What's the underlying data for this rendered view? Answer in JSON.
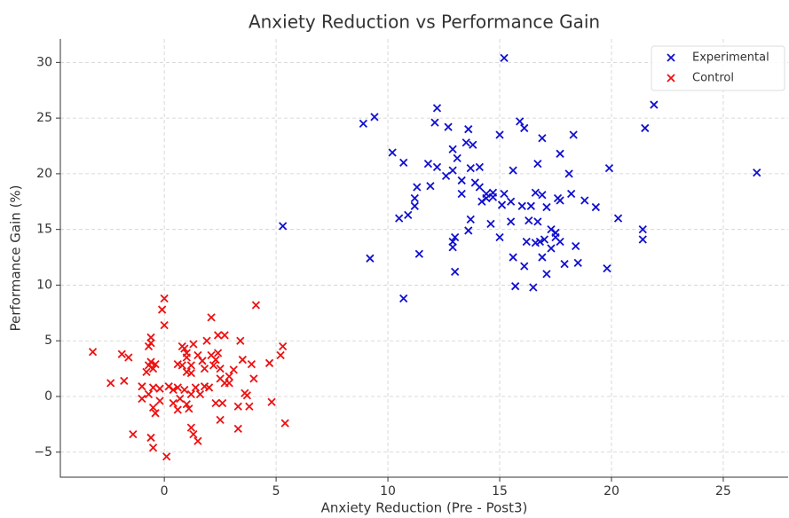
{
  "chart_data": {
    "type": "scatter",
    "title": "Anxiety Reduction vs Performance Gain",
    "x_label": "Anxiety Reduction (Pre - Post3)",
    "y_label": "Performance Gain (%)",
    "xlim": [
      -4.65,
      27.9
    ],
    "ylim": [
      -7.25,
      32.1
    ],
    "xticks": [
      0,
      5,
      10,
      15,
      20,
      25
    ],
    "yticks": [
      {
        "value": -5,
        "label": "−5"
      },
      0,
      5,
      10,
      15,
      20,
      25,
      30
    ],
    "grid": true,
    "legend": "upper right",
    "series": [
      {
        "name": "Experimental",
        "color": "#1010d0",
        "x": [
          15.2,
          8.9,
          9.4,
          12.2,
          12.1,
          12.7,
          13.6,
          15.9,
          16.1,
          15.0,
          18.3,
          16.9,
          21.5,
          21.9,
          26.5,
          10.2,
          10.7,
          12.9,
          13.5,
          13.8,
          13.1,
          11.8,
          12.2,
          12.9,
          13.7,
          14.1,
          15.6,
          16.7,
          17.7,
          19.9,
          18.1,
          12.6,
          13.3,
          13.9,
          14.1,
          11.9,
          11.3,
          14.4,
          14.7,
          14.4,
          14.7,
          15.2,
          15.1,
          15.5,
          16.6,
          16.9,
          13.3,
          11.2,
          11.2,
          14.2,
          16.0,
          16.4,
          17.1,
          17.6,
          17.7,
          18.2,
          18.8,
          19.3,
          10.5,
          10.9,
          13.7,
          14.6,
          15.5,
          16.3,
          16.7,
          20.3,
          21.4,
          13.6,
          13.0,
          12.9,
          12.9,
          15.0,
          16.2,
          16.6,
          16.8,
          17.0,
          17.3,
          17.5,
          17.5,
          17.7,
          17.3,
          18.4,
          21.4,
          11.4,
          9.2,
          15.6,
          16.1,
          16.9,
          17.9,
          18.5,
          19.8,
          13.0,
          17.1,
          15.7,
          16.5,
          10.7,
          5.3
        ],
        "values": [
          30.4,
          24.5,
          25.1,
          25.9,
          24.6,
          24.2,
          24.0,
          24.7,
          24.1,
          23.5,
          23.5,
          23.2,
          24.1,
          26.2,
          20.1,
          21.9,
          21.0,
          22.2,
          22.8,
          22.6,
          21.4,
          20.9,
          20.6,
          20.3,
          20.5,
          20.6,
          20.3,
          20.9,
          21.8,
          20.5,
          20.0,
          19.8,
          19.4,
          19.2,
          18.8,
          18.9,
          18.8,
          18.2,
          18.3,
          17.8,
          17.9,
          18.2,
          17.2,
          17.5,
          18.3,
          18.1,
          18.2,
          17.8,
          17.1,
          17.5,
          17.1,
          17.1,
          17.0,
          17.8,
          17.6,
          18.2,
          17.6,
          17.0,
          16.0,
          16.3,
          15.9,
          15.5,
          15.7,
          15.8,
          15.7,
          16.0,
          15.0,
          14.9,
          14.3,
          13.9,
          13.4,
          14.3,
          13.9,
          13.8,
          13.9,
          14.1,
          15.0,
          14.7,
          14.3,
          13.9,
          13.3,
          13.5,
          14.1,
          12.8,
          12.4,
          12.5,
          11.7,
          12.5,
          11.9,
          12.0,
          11.5,
          11.2,
          11.0,
          9.9,
          9.8,
          8.8,
          15.3
        ]
      },
      {
        "name": "Control",
        "color": "#ee1010",
        "x": [
          -3.2,
          -2.4,
          -1.8,
          -1.9,
          -1.6,
          -1.4,
          -0.6,
          0,
          -0.1,
          0,
          -0.6,
          -0.6,
          -0.7,
          -0.6,
          -0.4,
          -0.7,
          -0.8,
          -0.5,
          -1.0,
          -1.0,
          -0.7,
          -0.5,
          -0.2,
          -0.4,
          -0.5,
          -0.5,
          0.1,
          -0.2,
          0.2,
          0.4,
          0.6,
          0.9,
          0.7,
          0.4,
          1.0,
          0.6,
          0.6,
          0.8,
          1.0,
          1.2,
          0.8,
          0.9,
          1.0,
          1.0,
          1.3,
          1.2,
          1.4,
          1.2,
          1.6,
          1.1,
          1.5,
          1.7,
          1.8,
          1.9,
          2.1,
          2.1,
          2.2,
          2.3,
          2.4,
          2.5,
          2.7,
          2.4,
          1.8,
          2.0,
          2.5,
          2.7,
          1.2,
          1.3,
          1.5,
          2.3,
          2.6,
          2.5,
          3.1,
          3.4,
          3.5,
          3.6,
          3.7,
          3.3,
          3.3,
          2.9,
          2.9,
          3.9,
          4.0,
          4.1,
          3.8,
          4.7,
          4.8,
          5.3,
          5.2,
          5.4
        ],
        "values": [
          4.0,
          1.2,
          1.4,
          3.8,
          3.5,
          -3.4,
          -3.7,
          8.8,
          7.8,
          6.4,
          5.3,
          4.8,
          4.5,
          3.1,
          2.9,
          2.8,
          2.2,
          2.5,
          0.9,
          -0.2,
          0.2,
          0.8,
          0.7,
          -1.5,
          -1.0,
          -4.6,
          -5.4,
          -0.4,
          0.9,
          0.6,
          0.8,
          0.6,
          -0.2,
          -0.6,
          -0.7,
          -1.2,
          2.9,
          2.8,
          2.2,
          2.8,
          4.5,
          4.3,
          3.9,
          3.5,
          4.7,
          2.1,
          0.8,
          0.2,
          0.2,
          -1.1,
          3.7,
          3.2,
          2.5,
          5.0,
          7.1,
          3.7,
          2.8,
          3.3,
          3.9,
          2.5,
          5.5,
          5.5,
          0.9,
          0.8,
          1.6,
          1.2,
          -2.8,
          -3.4,
          -4.0,
          -0.6,
          -0.6,
          -2.1,
          2.4,
          5.0,
          3.3,
          0.3,
          0.1,
          -0.9,
          -2.9,
          1.8,
          1.2,
          2.9,
          1.6,
          8.2,
          -0.9,
          3.0,
          -0.5,
          4.5,
          3.7,
          -2.4
        ]
      }
    ]
  }
}
